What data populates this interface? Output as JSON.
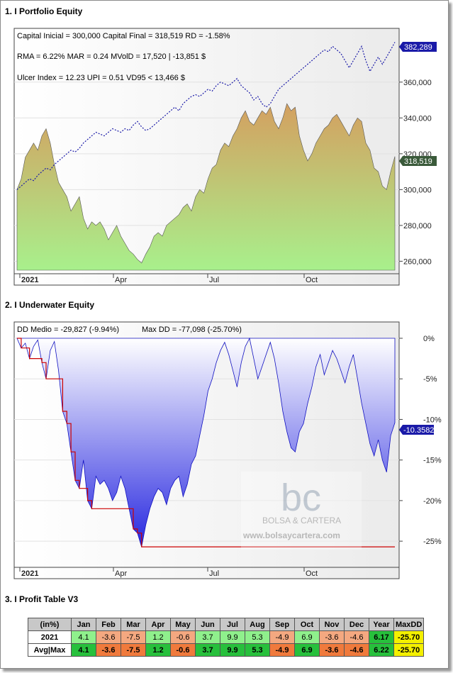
{
  "sections": {
    "equity_title": "1. I Portfolio Equity",
    "underwater_title": "2. I Underwater Equity",
    "profit_title": "3. I Profit Table V3"
  },
  "equity_stats": {
    "line1": "Capital Inicial = 300,000  Capital Final = 318,519  RD = -1.58%",
    "line2": "RMA = 6.22%  MAR = 0.24  MVolD = 17,520 | -13,851 $",
    "line3": "Ulcer Index = 12.23  UPI = 0.51  VD95 < 13,466 $"
  },
  "underwater_stats": {
    "line1": "DD Medio = -29,827 (-9.94%)",
    "line2": "Max DD = -77,098 (-25.70%)"
  },
  "watermark": {
    "logo": "bc",
    "name": "BOLSA & CARTERA",
    "url": "www.bolsaycartera.com"
  },
  "colors": {
    "benchmark_line": "#1a1aa8",
    "equity_fill_top": "#d4a060",
    "equity_fill_bottom": "#a8f08c",
    "underwater_fill_top": "#ffffff",
    "underwater_fill_bottom": "#2828e0",
    "maxdd_line": "#cc0000",
    "positive_cell": "#27c03c",
    "positive_cell_light": "#8ff08c",
    "negative_cell": "#f07a3c",
    "negative_cell_light": "#f4a880",
    "year_header": "#c8c8c8",
    "maxdd_cell": "#f4f000"
  },
  "chart_data": [
    {
      "type": "area",
      "title": "1. I Portfolio Equity",
      "x_ticks": [
        "2021",
        "Apr",
        "Jul",
        "Oct"
      ],
      "y_ticks": [
        260000,
        280000,
        300000,
        320000,
        340000,
        360000
      ],
      "ylim": [
        255000,
        390000
      ],
      "last_value_labels": {
        "benchmark": "382,289",
        "portfolio": "318,519"
      },
      "series": [
        {
          "name": "",
          "style": "area",
          "values": [
            300000,
            306000,
            318000,
            322000,
            326000,
            322000,
            330000,
            334000,
            326000,
            314000,
            304000,
            300000,
            296000,
            288000,
            292000,
            296000,
            284000,
            278000,
            282000,
            280000,
            282000,
            278000,
            272000,
            276000,
            280000,
            274000,
            270000,
            266000,
            264000,
            261000,
            259000,
            264000,
            268000,
            274000,
            276000,
            274000,
            280000,
            282000,
            284000,
            286000,
            290000,
            292000,
            288000,
            296000,
            300000,
            298000,
            306000,
            312000,
            314000,
            322000,
            326000,
            324000,
            330000,
            334000,
            340000,
            344000,
            338000,
            336000,
            340000,
            344000,
            342000,
            346000,
            338000,
            334000,
            340000,
            348000,
            344000,
            346000,
            330000,
            322000,
            316000,
            320000,
            326000,
            330000,
            334000,
            336000,
            340000,
            342000,
            338000,
            334000,
            330000,
            336000,
            340000,
            338000,
            326000,
            322000,
            312000,
            310000,
            302000,
            300000,
            310000,
            318519
          ]
        },
        {
          "name": "",
          "style": "dashed-line",
          "values": [
            300000,
            302000,
            304000,
            306000,
            305000,
            308000,
            310000,
            312000,
            311000,
            314000,
            316000,
            318000,
            320000,
            322000,
            321000,
            323000,
            326000,
            328000,
            330000,
            332000,
            331000,
            330000,
            332000,
            334000,
            333000,
            332000,
            334000,
            333000,
            336000,
            338000,
            335000,
            333000,
            334000,
            336000,
            338000,
            340000,
            342000,
            344000,
            346000,
            344000,
            348000,
            350000,
            352000,
            353000,
            352000,
            354000,
            356000,
            355000,
            358000,
            360000,
            359000,
            358000,
            360000,
            362000,
            358000,
            356000,
            354000,
            350000,
            352000,
            348000,
            346000,
            348000,
            352000,
            356000,
            358000,
            360000,
            362000,
            364000,
            366000,
            368000,
            370000,
            372000,
            374000,
            376000,
            378000,
            377000,
            380000,
            378000,
            376000,
            372000,
            368000,
            372000,
            376000,
            380000,
            372000,
            366000,
            370000,
            374000,
            370000,
            374000,
            378000,
            382289
          ]
        }
      ]
    },
    {
      "type": "area",
      "title": "2. I Underwater Equity",
      "x_ticks": [
        "2021",
        "Apr",
        "Jul",
        "Oct"
      ],
      "y_ticks": [
        "0%",
        "-5%",
        "-10%",
        "-15%",
        "-20%",
        "-25%"
      ],
      "ylim": [
        -27,
        0
      ],
      "last_value_label": "-10.3582",
      "series": [
        {
          "name": "",
          "style": "area",
          "values": [
            0,
            -1.2,
            -0.6,
            -2.5,
            -1.0,
            -0.2,
            -3.0,
            -5.0,
            -1.5,
            -0.4,
            -4.0,
            -9.0,
            -10.5,
            -14.0,
            -17.5,
            -18.5,
            -15.0,
            -20.0,
            -21.0,
            -17.0,
            -18.0,
            -17.5,
            -18.5,
            -20.0,
            -19.0,
            -17.0,
            -18.5,
            -21.0,
            -23.5,
            -24.0,
            -25.7,
            -23.0,
            -21.0,
            -19.5,
            -18.5,
            -19.0,
            -20.5,
            -18.5,
            -17.5,
            -17.0,
            -19.5,
            -18.0,
            -15.5,
            -14.5,
            -12.0,
            -9.5,
            -6.5,
            -5.0,
            -3.0,
            -1.5,
            -0.5,
            -2.0,
            -4.0,
            -6.0,
            -3.0,
            -1.0,
            0,
            -2.5,
            -5.0,
            -3.5,
            -2.0,
            -0.5,
            -2.5,
            -5.5,
            -9.0,
            -11.5,
            -13.5,
            -14.0,
            -11.5,
            -10.5,
            -8.0,
            -6.0,
            -3.5,
            -2.0,
            -4.5,
            -3.0,
            -1.5,
            -2.5,
            -4.0,
            -5.5,
            -3.5,
            -2.0,
            -5.0,
            -8.0,
            -10.5,
            -13.0,
            -14.5,
            -12.5,
            -15.0,
            -16.5,
            -12.0,
            -10.4
          ]
        },
        {
          "name": "",
          "style": "step-line",
          "values": [
            0,
            -1.2,
            -1.2,
            -2.5,
            -2.5,
            -2.5,
            -3.0,
            -5.0,
            -5.0,
            -5.0,
            -5.0,
            -9.0,
            -10.5,
            -14.0,
            -17.5,
            -18.5,
            -18.5,
            -20.0,
            -21.0,
            -21.0,
            -21.0,
            -21.0,
            -21.0,
            -21.0,
            -21.0,
            -21.0,
            -21.0,
            -21.0,
            -23.5,
            -24.0,
            -25.7,
            -25.7,
            -25.7,
            -25.7,
            -25.7,
            -25.7,
            -25.7,
            -25.7,
            -25.7,
            -25.7,
            -25.7,
            -25.7,
            -25.7,
            -25.7,
            -25.7,
            -25.7,
            -25.7,
            -25.7,
            -25.7,
            -25.7,
            -25.7,
            -25.7,
            -25.7,
            -25.7,
            -25.7,
            -25.7,
            -25.7,
            -25.7,
            -25.7,
            -25.7,
            -25.7,
            -25.7,
            -25.7,
            -25.7,
            -25.7,
            -25.7,
            -25.7,
            -25.7,
            -25.7,
            -25.7,
            -25.7,
            -25.7,
            -25.7,
            -25.7,
            -25.7,
            -25.7,
            -25.7,
            -25.7,
            -25.7,
            -25.7,
            -25.7,
            -25.7,
            -25.7,
            -25.7,
            -25.7,
            -25.7,
            -25.7,
            -25.7,
            -25.7,
            -25.7,
            -25.7,
            -25.7
          ]
        }
      ]
    },
    {
      "type": "table",
      "title": "3. I Profit Table V3",
      "columns": [
        "(in%)",
        "Jan",
        "Feb",
        "Mar",
        "Apr",
        "May",
        "Jun",
        "Jul",
        "Aug",
        "Sep",
        "Oct",
        "Nov",
        "Dec",
        "Year",
        "MaxDD"
      ],
      "rows": [
        {
          "label": "2021",
          "values": [
            "4.1",
            "-3.6",
            "-7.5",
            "1.2",
            "-0.6",
            "3.7",
            "9.9",
            "5.3",
            "-4.9",
            "6.9",
            "-3.6",
            "-4.6",
            "6.17",
            "-25.70"
          ]
        },
        {
          "label": "Avg|Max",
          "values": [
            "4.1",
            "-3.6",
            "-7.5",
            "1.2",
            "-0.6",
            "3.7",
            "9.9",
            "5.3",
            "-4.9",
            "6.9",
            "-3.6",
            "-4.6",
            "6.22",
            "-25.70"
          ]
        }
      ]
    }
  ]
}
